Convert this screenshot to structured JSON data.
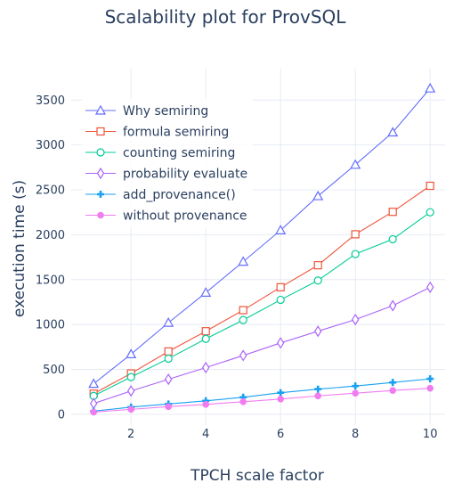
{
  "chart_data": {
    "type": "line",
    "title": "Scalability plot for ProvSQL",
    "xlabel": "TPCH scale factor",
    "ylabel": "execution time (s)",
    "x": [
      1,
      2,
      3,
      4,
      5,
      6,
      7,
      8,
      9,
      10
    ],
    "xlim": [
      0.4,
      10.4
    ],
    "ylim": [
      -120,
      3850
    ],
    "xticks": [
      2,
      4,
      6,
      8,
      10
    ],
    "yticks": [
      0,
      500,
      1000,
      1500,
      2000,
      2500,
      3000,
      3500
    ],
    "grid": true,
    "legend_position": "top-left",
    "series": [
      {
        "name": "Why semiring",
        "color": "#636efa",
        "marker": "triangle",
        "values": [
          340,
          670,
          1020,
          1355,
          1700,
          2050,
          2430,
          2780,
          3140,
          3630
        ]
      },
      {
        "name": "formula semiring",
        "color": "#ef553b",
        "marker": "square",
        "values": [
          230,
          455,
          700,
          925,
          1160,
          1415,
          1660,
          2005,
          2255,
          2545
        ]
      },
      {
        "name": "counting semiring",
        "color": "#00cc96",
        "marker": "circle",
        "values": [
          205,
          415,
          620,
          840,
          1050,
          1275,
          1490,
          1785,
          1950,
          2250
        ]
      },
      {
        "name": "probability evaluate",
        "color": "#ab63fa",
        "marker": "diamond",
        "values": [
          120,
          260,
          390,
          520,
          655,
          795,
          925,
          1055,
          1210,
          1415
        ]
      },
      {
        "name": "add_provenance()",
        "color": "#19a0f0",
        "marker": "cross",
        "values": [
          35,
          80,
          115,
          150,
          190,
          240,
          280,
          315,
          355,
          395
        ]
      },
      {
        "name": "without provenance",
        "color": "#f07cf0",
        "marker": "dot",
        "values": [
          25,
          55,
          85,
          110,
          140,
          170,
          205,
          235,
          265,
          290
        ]
      }
    ]
  }
}
